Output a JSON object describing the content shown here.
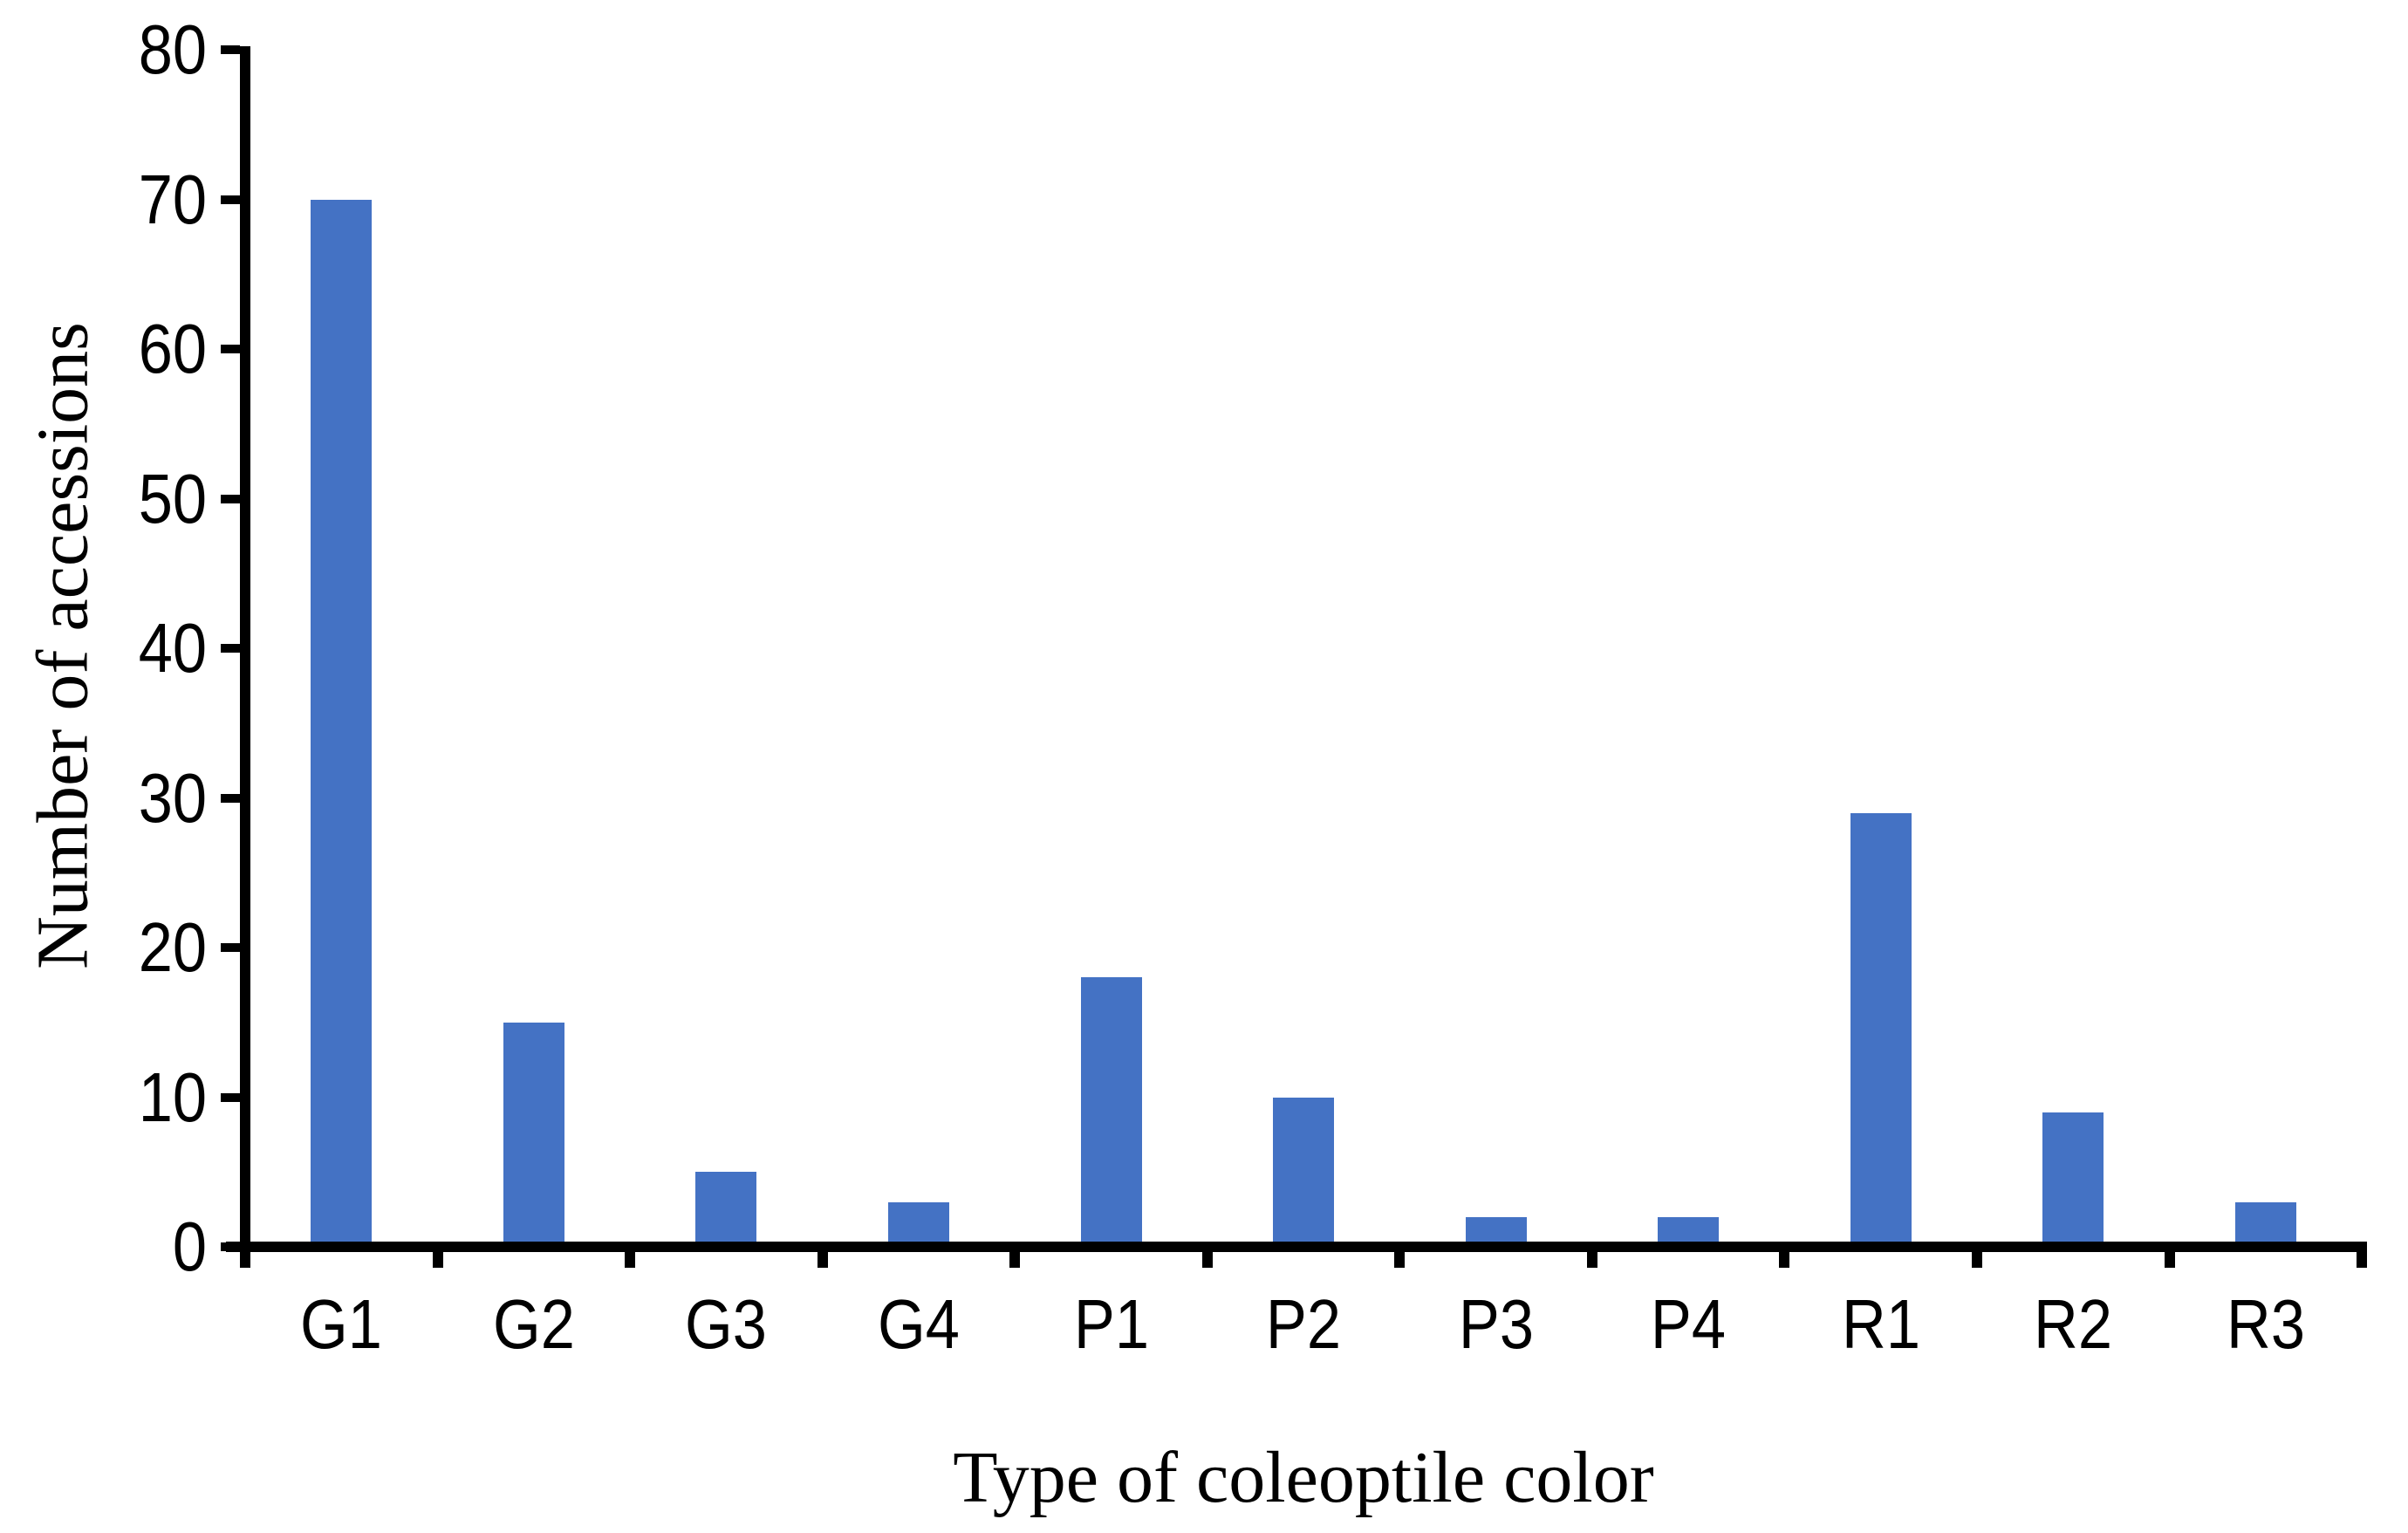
{
  "chart_data": {
    "type": "bar",
    "title": "",
    "categories": [
      "G1",
      "G2",
      "G3",
      "G4",
      "P1",
      "P2",
      "P3",
      "P4",
      "R1",
      "R2",
      "R3"
    ],
    "values": [
      70,
      15,
      5,
      3,
      18,
      10,
      2,
      2,
      29,
      9,
      3
    ],
    "xlabel": "Type of coleoptile color",
    "ylabel": "Number of accessions",
    "ylim": [
      0,
      80
    ],
    "ytick_step": 10,
    "yticks": [
      0,
      10,
      20,
      30,
      40,
      50,
      60,
      70,
      80
    ],
    "grid": false,
    "legend": false,
    "bar_color": "#4472C4",
    "axis_color": "#000000",
    "background_color": "#ffffff"
  }
}
